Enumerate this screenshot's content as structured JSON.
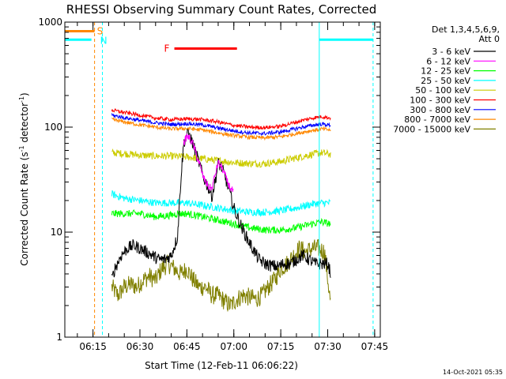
{
  "chart_data": {
    "type": "line",
    "title": "RHESSI Observing Summary Count Rates, Corrected",
    "xlabel": "Start Time (12-Feb-11 06:06:22)",
    "ylabel_parts": [
      "Corrected Count Rate (s",
      "-1",
      " detector",
      "-1",
      ")"
    ],
    "yscale": "log",
    "ylim": [
      1,
      1000
    ],
    "xlim_minutes": [
      6.0,
      106.8
    ],
    "y_ticks": [
      {
        "label": "1",
        "value": 1
      },
      {
        "label": "10",
        "value": 10
      },
      {
        "label": "100",
        "value": 100
      },
      {
        "label": "1000",
        "value": 1000
      }
    ],
    "x_ticks": [
      {
        "label": "06:15",
        "minute": 15
      },
      {
        "label": "06:30",
        "minute": 30
      },
      {
        "label": "06:45",
        "minute": 45
      },
      {
        "label": "07:00",
        "minute": 60
      },
      {
        "label": "07:15",
        "minute": 75
      },
      {
        "label": "07:30",
        "minute": 90
      },
      {
        "label": "07:45",
        "minute": 105
      }
    ],
    "legend_header": [
      "Det 1,3,4,5,6,9,",
      "Att 0"
    ],
    "series": [
      {
        "name": "3 - 6 keV",
        "color": "#000000",
        "points": [
          [
            21,
            3.5
          ],
          [
            22,
            4.5
          ],
          [
            24,
            6
          ],
          [
            26,
            7
          ],
          [
            28,
            7.5
          ],
          [
            30,
            7
          ],
          [
            32,
            6.5
          ],
          [
            34,
            6
          ],
          [
            36,
            5.5
          ],
          [
            38,
            5.5
          ],
          [
            40,
            6
          ],
          [
            42,
            9
          ],
          [
            43,
            30
          ],
          [
            44,
            70
          ],
          [
            45,
            88
          ],
          [
            46,
            82
          ],
          [
            47,
            68
          ],
          [
            48,
            55
          ],
          [
            49,
            45
          ],
          [
            50,
            35
          ],
          [
            51,
            30
          ],
          [
            52,
            26
          ],
          [
            53,
            22
          ],
          [
            54,
            30
          ],
          [
            55,
            45
          ],
          [
            56,
            42
          ],
          [
            57,
            35
          ],
          [
            58,
            28
          ],
          [
            59,
            22
          ],
          [
            60,
            17
          ],
          [
            62,
            12
          ],
          [
            64,
            9
          ],
          [
            66,
            7
          ],
          [
            68,
            5.5
          ],
          [
            70,
            5
          ],
          [
            72,
            4.8
          ],
          [
            74,
            4.7
          ],
          [
            76,
            5
          ],
          [
            78,
            5
          ],
          [
            80,
            5.5
          ],
          [
            82,
            6
          ],
          [
            84,
            5.5
          ],
          [
            86,
            5
          ],
          [
            88,
            5
          ],
          [
            90,
            5
          ],
          [
            91,
            4
          ]
        ]
      },
      {
        "name": "6 - 12 keV",
        "color": "#ff00ff",
        "points": [
          [
            44,
            70
          ],
          [
            45,
            82
          ],
          [
            46,
            78
          ],
          [
            47,
            68
          ],
          [
            48,
            55
          ],
          [
            49,
            45
          ],
          [
            50,
            35
          ],
          [
            51,
            30
          ],
          [
            52,
            27
          ],
          [
            53,
            26
          ],
          [
            54,
            35
          ],
          [
            55,
            46
          ],
          [
            56,
            42
          ],
          [
            57,
            36
          ],
          [
            58,
            30
          ],
          [
            59,
            26
          ],
          [
            60,
            24
          ]
        ]
      },
      {
        "name": "12 - 25 keV",
        "color": "#00ff00",
        "points": [
          [
            21,
            15
          ],
          [
            25,
            15
          ],
          [
            30,
            15
          ],
          [
            35,
            14
          ],
          [
            40,
            14.5
          ],
          [
            42,
            15
          ],
          [
            45,
            15
          ],
          [
            50,
            14
          ],
          [
            55,
            13
          ],
          [
            60,
            12
          ],
          [
            65,
            11
          ],
          [
            70,
            10.5
          ],
          [
            75,
            10.5
          ],
          [
            80,
            11
          ],
          [
            85,
            12
          ],
          [
            88,
            12.5
          ],
          [
            91,
            12
          ]
        ]
      },
      {
        "name": "25 - 50 keV",
        "color": "#00ffff",
        "points": [
          [
            21,
            23
          ],
          [
            25,
            21
          ],
          [
            30,
            20
          ],
          [
            35,
            19
          ],
          [
            40,
            19
          ],
          [
            45,
            19
          ],
          [
            50,
            18
          ],
          [
            55,
            17
          ],
          [
            60,
            16
          ],
          [
            65,
            15.5
          ],
          [
            70,
            15.5
          ],
          [
            75,
            16
          ],
          [
            80,
            17
          ],
          [
            85,
            18.5
          ],
          [
            88,
            19
          ],
          [
            91,
            19
          ]
        ]
      },
      {
        "name": "50 - 100 keV",
        "color": "#cccc00",
        "points": [
          [
            21,
            57
          ],
          [
            25,
            56
          ],
          [
            30,
            54
          ],
          [
            35,
            53
          ],
          [
            40,
            53
          ],
          [
            45,
            52
          ],
          [
            50,
            50
          ],
          [
            55,
            48
          ],
          [
            60,
            46
          ],
          [
            65,
            45
          ],
          [
            70,
            45
          ],
          [
            75,
            47
          ],
          [
            80,
            51
          ],
          [
            85,
            55
          ],
          [
            88,
            57
          ],
          [
            91,
            55
          ]
        ]
      },
      {
        "name": "100 - 300 keV",
        "color": "#ff0000",
        "points": [
          [
            21,
            145
          ],
          [
            25,
            138
          ],
          [
            30,
            130
          ],
          [
            35,
            122
          ],
          [
            40,
            118
          ],
          [
            45,
            120
          ],
          [
            50,
            118
          ],
          [
            55,
            112
          ],
          [
            60,
            104
          ],
          [
            65,
            100
          ],
          [
            70,
            99
          ],
          [
            75,
            102
          ],
          [
            80,
            112
          ],
          [
            85,
            122
          ],
          [
            88,
            126
          ],
          [
            91,
            122
          ]
        ]
      },
      {
        "name": "300 - 800 keV",
        "color": "#0000ff",
        "points": [
          [
            21,
            130
          ],
          [
            25,
            123
          ],
          [
            30,
            116
          ],
          [
            35,
            110
          ],
          [
            40,
            106
          ],
          [
            45,
            108
          ],
          [
            50,
            105
          ],
          [
            55,
            98
          ],
          [
            60,
            92
          ],
          [
            65,
            88
          ],
          [
            70,
            87
          ],
          [
            75,
            90
          ],
          [
            80,
            97
          ],
          [
            85,
            104
          ],
          [
            88,
            107
          ],
          [
            91,
            104
          ]
        ]
      },
      {
        "name": "800 - 7000 keV",
        "color": "#ff8800",
        "points": [
          [
            21,
            118
          ],
          [
            25,
            112
          ],
          [
            30,
            105
          ],
          [
            35,
            100
          ],
          [
            40,
            96
          ],
          [
            45,
            97
          ],
          [
            50,
            94
          ],
          [
            55,
            88
          ],
          [
            60,
            83
          ],
          [
            65,
            80
          ],
          [
            70,
            79
          ],
          [
            75,
            81
          ],
          [
            80,
            87
          ],
          [
            85,
            93
          ],
          [
            88,
            96
          ],
          [
            91,
            94
          ]
        ]
      },
      {
        "name": "7000 - 15000 keV",
        "color": "#808000",
        "points": [
          [
            21,
            3
          ],
          [
            23,
            2.5
          ],
          [
            25,
            3
          ],
          [
            27,
            3.2
          ],
          [
            29,
            3
          ],
          [
            31,
            3.5
          ],
          [
            33,
            3.8
          ],
          [
            35,
            3.5
          ],
          [
            37,
            4.5
          ],
          [
            39,
            5
          ],
          [
            41,
            4.5
          ],
          [
            43,
            4
          ],
          [
            45,
            4.5
          ],
          [
            47,
            3.5
          ],
          [
            49,
            3
          ],
          [
            51,
            3
          ],
          [
            53,
            2.5
          ],
          [
            55,
            2.5
          ],
          [
            57,
            2.2
          ],
          [
            59,
            2
          ],
          [
            61,
            2.3
          ],
          [
            63,
            2.5
          ],
          [
            65,
            2.4
          ],
          [
            67,
            2.3
          ],
          [
            69,
            2.5
          ],
          [
            71,
            3
          ],
          [
            73,
            3.5
          ],
          [
            75,
            4.5
          ],
          [
            77,
            5
          ],
          [
            79,
            6
          ],
          [
            81,
            7
          ],
          [
            83,
            6.5
          ],
          [
            85,
            7
          ],
          [
            87,
            7
          ],
          [
            89,
            6.5
          ],
          [
            91,
            2
          ]
        ]
      }
    ],
    "annotations": {
      "S": {
        "label": "S",
        "color": "#ff8800",
        "from_minute": 6.0,
        "to_minute": 15.5,
        "value": 820,
        "dashed_line_minute": 15.5
      },
      "N": {
        "label": "N",
        "color": "#00ffff",
        "segments": [
          [
            6.0,
            14.5
          ],
          [
            87.3,
            104.5
          ]
        ],
        "value": 680,
        "solid_lines_minutes": [
          6.0,
          87.3
        ],
        "dashed_lines_minutes": [
          18.0,
          104.5
        ]
      },
      "F": {
        "label": "F",
        "color": "#ff0000",
        "from_minute": 41.0,
        "to_minute": 61.0,
        "value": 560
      }
    },
    "footer_date": "14-Oct-2021 05:35"
  }
}
